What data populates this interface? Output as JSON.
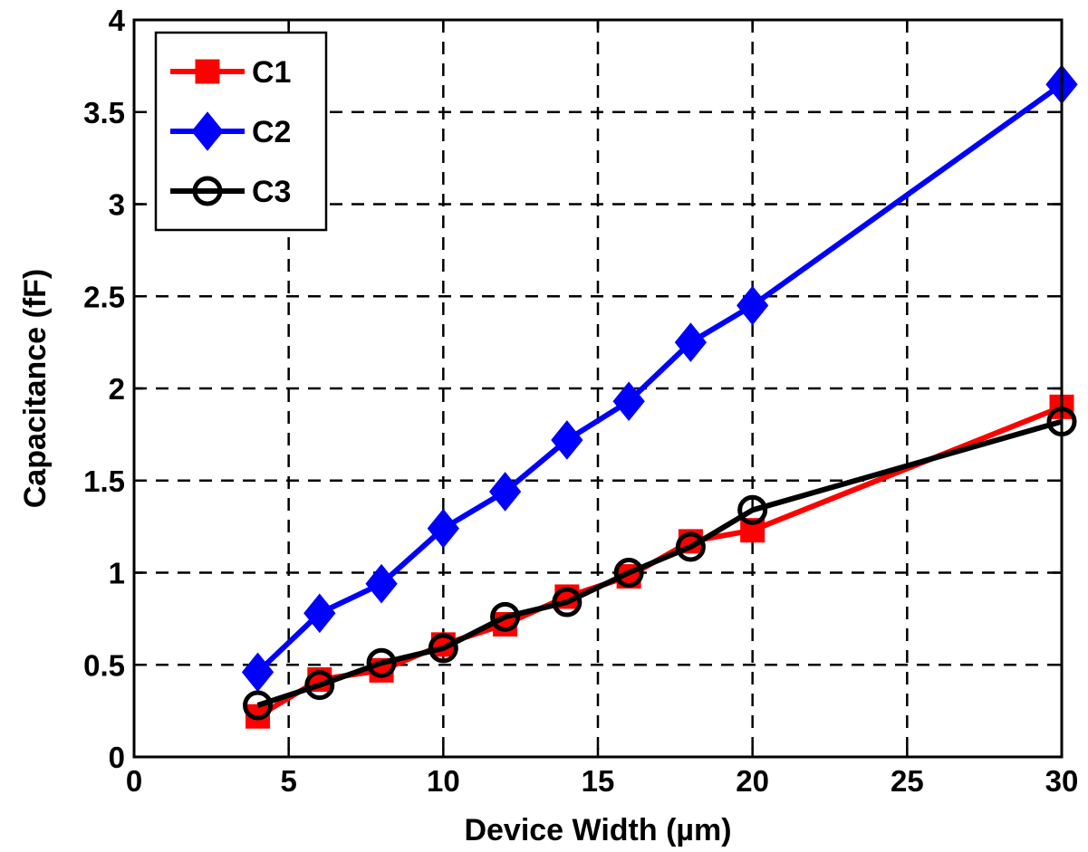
{
  "chart_data": {
    "type": "line",
    "xlabel": "Device Width (µm)",
    "ylabel": "Capacitance (fF)",
    "xlim": [
      0,
      30
    ],
    "ylim": [
      0,
      4
    ],
    "xticks": [
      "0",
      "5",
      "10",
      "15",
      "20",
      "25",
      "30"
    ],
    "yticks": [
      "0",
      "0.5",
      "1",
      "1.5",
      "2",
      "2.5",
      "3",
      "3.5",
      "4"
    ],
    "grid": true,
    "grid_style": "dashed",
    "legend_position": "top-left",
    "series": [
      {
        "name": "C1",
        "color": "#ff0000",
        "marker": "square",
        "x": [
          4,
          6,
          8,
          10,
          12,
          14,
          16,
          18,
          20,
          30
        ],
        "y": [
          0.22,
          0.42,
          0.47,
          0.61,
          0.72,
          0.87,
          0.98,
          1.17,
          1.23,
          1.9
        ]
      },
      {
        "name": "C2",
        "color": "#0000ff",
        "marker": "diamond",
        "x": [
          4,
          6,
          8,
          10,
          12,
          14,
          16,
          18,
          20,
          30
        ],
        "y": [
          0.46,
          0.78,
          0.94,
          1.24,
          1.44,
          1.72,
          1.93,
          2.25,
          2.45,
          3.65
        ]
      },
      {
        "name": "C3",
        "color": "#000000",
        "marker": "circle",
        "x": [
          4,
          6,
          8,
          10,
          12,
          14,
          16,
          18,
          20,
          30
        ],
        "y": [
          0.28,
          0.39,
          0.51,
          0.59,
          0.76,
          0.84,
          1.0,
          1.14,
          1.34,
          1.82
        ]
      }
    ]
  }
}
